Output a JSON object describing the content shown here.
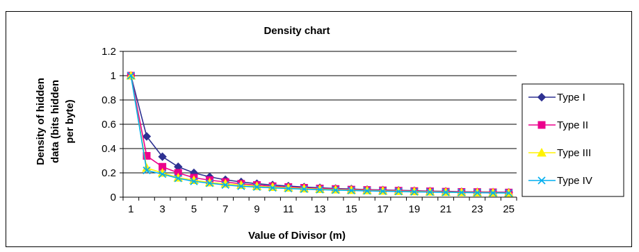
{
  "chart_data": {
    "type": "line",
    "title": "Density chart",
    "xlabel": "Value of Divisor (m)",
    "ylabel_lines": [
      "Density of hidden",
      "data (bits hidden",
      "per byte)"
    ],
    "x": [
      1,
      2,
      3,
      4,
      5,
      6,
      7,
      8,
      9,
      10,
      11,
      12,
      13,
      14,
      15,
      16,
      17,
      18,
      19,
      20,
      21,
      22,
      23,
      24,
      25
    ],
    "x_tick_labels": [
      "1",
      "3",
      "5",
      "7",
      "9",
      "11",
      "13",
      "15",
      "17",
      "19",
      "21",
      "23",
      "25"
    ],
    "y_tick_labels": [
      "0",
      "0.2",
      "0.4",
      "0.6",
      "0.8",
      "1",
      "1.2"
    ],
    "ylim": [
      0,
      1.2
    ],
    "grid": "horizontal",
    "legend_position": "right",
    "series": [
      {
        "name": "Type I",
        "color": "#2E3192",
        "marker": "diamond",
        "values": [
          1.0,
          0.5,
          0.333,
          0.25,
          0.2,
          0.167,
          0.143,
          0.125,
          0.111,
          0.1,
          0.091,
          0.083,
          0.077,
          0.071,
          0.067,
          0.062,
          0.059,
          0.056,
          0.053,
          0.05,
          0.048,
          0.045,
          0.043,
          0.042,
          0.04
        ]
      },
      {
        "name": "Type II",
        "color": "#EC008C",
        "marker": "square",
        "values": [
          1.0,
          0.34,
          0.25,
          0.2,
          0.16,
          0.14,
          0.125,
          0.11,
          0.1,
          0.09,
          0.083,
          0.077,
          0.071,
          0.067,
          0.062,
          0.059,
          0.056,
          0.053,
          0.05,
          0.048,
          0.045,
          0.043,
          0.042,
          0.04,
          0.038
        ]
      },
      {
        "name": "Type III",
        "color": "#FFF200",
        "marker": "triangle",
        "values": [
          1.0,
          0.24,
          0.2,
          0.16,
          0.14,
          0.12,
          0.11,
          0.1,
          0.09,
          0.083,
          0.077,
          0.071,
          0.066,
          0.062,
          0.058,
          0.055,
          0.052,
          0.049,
          0.047,
          0.044,
          0.042,
          0.04,
          0.038,
          0.037,
          0.035
        ]
      },
      {
        "name": "Type IV",
        "color": "#00AEEF",
        "marker": "x",
        "values": [
          1.0,
          0.22,
          0.19,
          0.155,
          0.13,
          0.115,
          0.1,
          0.09,
          0.083,
          0.077,
          0.071,
          0.066,
          0.062,
          0.058,
          0.055,
          0.052,
          0.049,
          0.047,
          0.044,
          0.042,
          0.04,
          0.038,
          0.037,
          0.035,
          0.034
        ]
      }
    ]
  }
}
